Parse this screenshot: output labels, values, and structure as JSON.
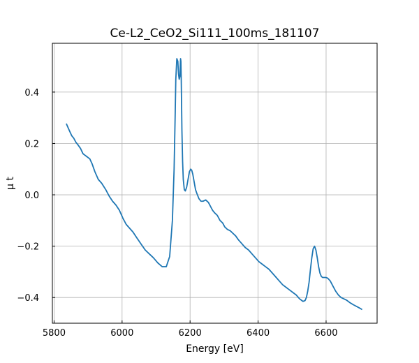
{
  "chart_data": {
    "type": "line",
    "title": "Ce-L2_CeO2_Si111_100ms_181107",
    "xlabel": "Energy [eV]",
    "ylabel": "μ t",
    "xlim": [
      5795,
      6750
    ],
    "ylim": [
      -0.5,
      0.59
    ],
    "xticks": [
      5800,
      6000,
      6200,
      6400,
      6600
    ],
    "yticks": [
      -0.4,
      -0.2,
      0.0,
      0.2,
      0.4
    ],
    "xtick_labels": [
      "5800",
      "6000",
      "6200",
      "6400",
      "6600"
    ],
    "ytick_labels": [
      "−0.4",
      "−0.2",
      "0.0",
      "0.2",
      "0.4"
    ],
    "grid": true,
    "color": "#1f77b4",
    "series": [
      {
        "x": [
          5836,
          5845,
          5852,
          5858,
          5864,
          5870,
          5878,
          5885,
          5895,
          5905,
          5912,
          5920,
          5930,
          5940,
          5952,
          5962,
          5972,
          5982,
          5992,
          6002,
          6012,
          6022,
          6032,
          6042,
          6055,
          6068,
          6080,
          6092,
          6105,
          6118,
          6130,
          6140,
          6148,
          6153,
          6156,
          6158,
          6161,
          6164,
          6166,
          6168,
          6170,
          6171,
          6172,
          6173,
          6174,
          6175,
          6176,
          6178,
          6180,
          6183,
          6186,
          6190,
          6194,
          6198,
          6202,
          6205,
          6208,
          6212,
          6216,
          6220,
          6226,
          6232,
          6238,
          6246,
          6254,
          6260,
          6266,
          6272,
          6280,
          6288,
          6296,
          6302,
          6310,
          6318,
          6326,
          6334,
          6342,
          6352,
          6362,
          6372,
          6382,
          6392,
          6402,
          6412,
          6422,
          6432,
          6442,
          6452,
          6462,
          6472,
          6482,
          6492,
          6502,
          6512,
          6522,
          6532,
          6538,
          6542,
          6546,
          6550,
          6554,
          6558,
          6562,
          6566,
          6570,
          6574,
          6578,
          6582,
          6586,
          6590,
          6595,
          6600,
          6605,
          6612,
          6620,
          6628,
          6636,
          6644,
          6652,
          6660,
          6670,
          6680,
          6690,
          6700,
          6706
        ],
        "y": [
          0.277,
          0.25,
          0.23,
          0.22,
          0.205,
          0.195,
          0.18,
          0.16,
          0.15,
          0.14,
          0.12,
          0.09,
          0.06,
          0.045,
          0.02,
          -0.005,
          -0.025,
          -0.04,
          -0.06,
          -0.09,
          -0.115,
          -0.13,
          -0.145,
          -0.165,
          -0.19,
          -0.215,
          -0.23,
          -0.245,
          -0.265,
          -0.28,
          -0.28,
          -0.24,
          -0.1,
          0.1,
          0.3,
          0.45,
          0.53,
          0.52,
          0.47,
          0.45,
          0.46,
          0.5,
          0.53,
          0.52,
          0.45,
          0.35,
          0.25,
          0.13,
          0.06,
          0.02,
          0.015,
          0.03,
          0.06,
          0.09,
          0.1,
          0.095,
          0.08,
          0.05,
          0.02,
          0.005,
          -0.015,
          -0.025,
          -0.025,
          -0.02,
          -0.03,
          -0.045,
          -0.06,
          -0.07,
          -0.08,
          -0.1,
          -0.11,
          -0.125,
          -0.135,
          -0.14,
          -0.15,
          -0.16,
          -0.175,
          -0.19,
          -0.205,
          -0.215,
          -0.23,
          -0.245,
          -0.26,
          -0.27,
          -0.28,
          -0.29,
          -0.305,
          -0.32,
          -0.335,
          -0.35,
          -0.36,
          -0.37,
          -0.38,
          -0.39,
          -0.405,
          -0.415,
          -0.412,
          -0.4,
          -0.375,
          -0.34,
          -0.29,
          -0.245,
          -0.21,
          -0.2,
          -0.215,
          -0.245,
          -0.28,
          -0.305,
          -0.318,
          -0.322,
          -0.322,
          -0.322,
          -0.325,
          -0.335,
          -0.355,
          -0.375,
          -0.39,
          -0.4,
          -0.405,
          -0.41,
          -0.42,
          -0.428,
          -0.435,
          -0.442,
          -0.447
        ]
      }
    ]
  }
}
